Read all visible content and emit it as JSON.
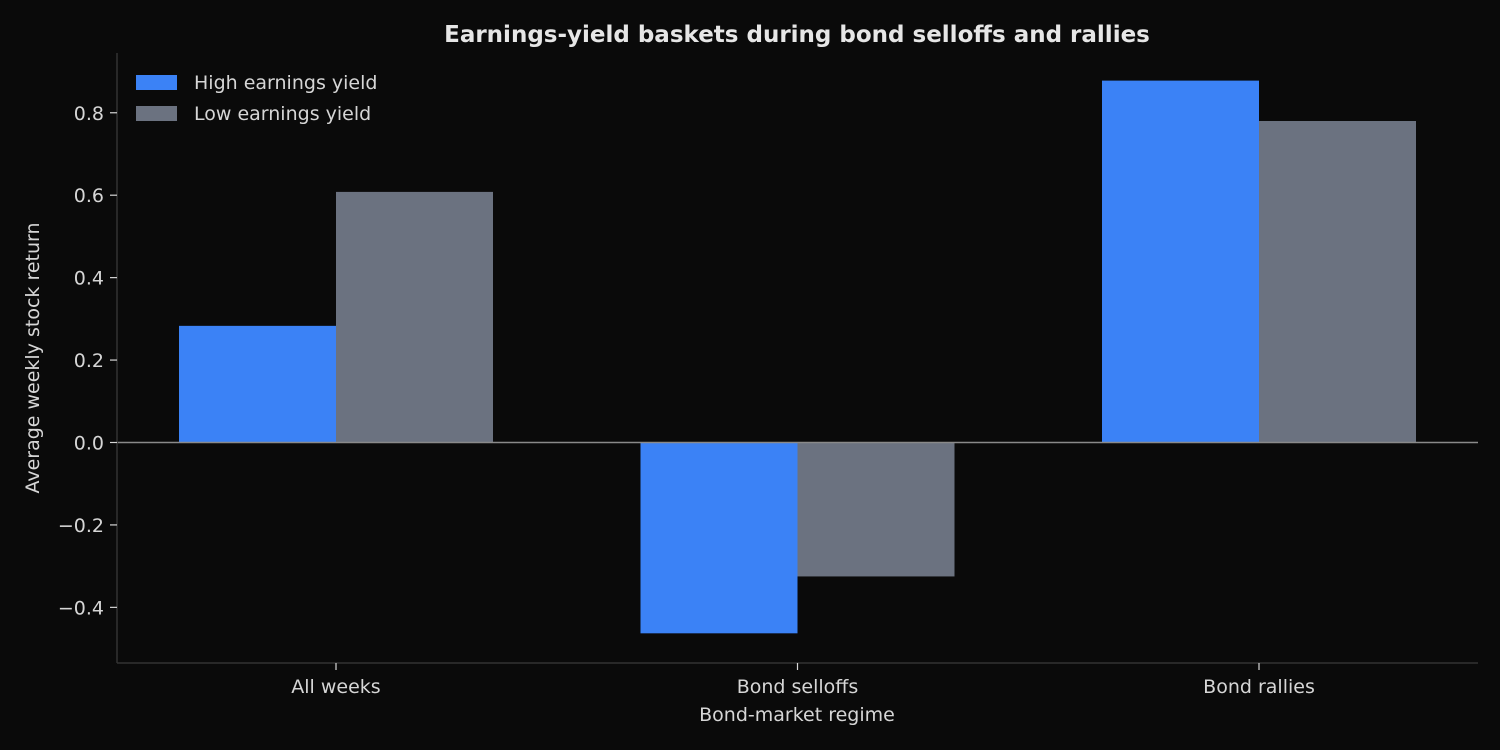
{
  "chart_data": {
    "type": "bar",
    "title": "Earnings-yield baskets during bond selloffs and rallies",
    "xlabel": "Bond-market regime",
    "ylabel": "Average weekly stock return",
    "categories": [
      "All weeks",
      "Bond selloffs",
      "Bond rallies"
    ],
    "series": [
      {
        "name": "High earnings yield",
        "color": "#3b82f6",
        "values": [
          0.283,
          -0.463,
          0.878
        ]
      },
      {
        "name": "Low earnings yield",
        "color": "#6b7280",
        "values": [
          0.608,
          -0.325,
          0.78
        ]
      }
    ],
    "ylim": [
      -0.535,
      0.945
    ],
    "yticks": [
      -0.4,
      -0.2,
      0.0,
      0.2,
      0.4,
      0.6,
      0.8
    ],
    "ytick_labels": [
      "−0.4",
      "−0.2",
      "0.0",
      "0.2",
      "0.4",
      "0.6",
      "0.8"
    ],
    "grid": false,
    "legend_position": "top-left",
    "colors": {
      "background": "#0a0a0a",
      "axis": "#333333",
      "zero_line": "#8a8a8a",
      "text": "#d6d6d6"
    }
  }
}
